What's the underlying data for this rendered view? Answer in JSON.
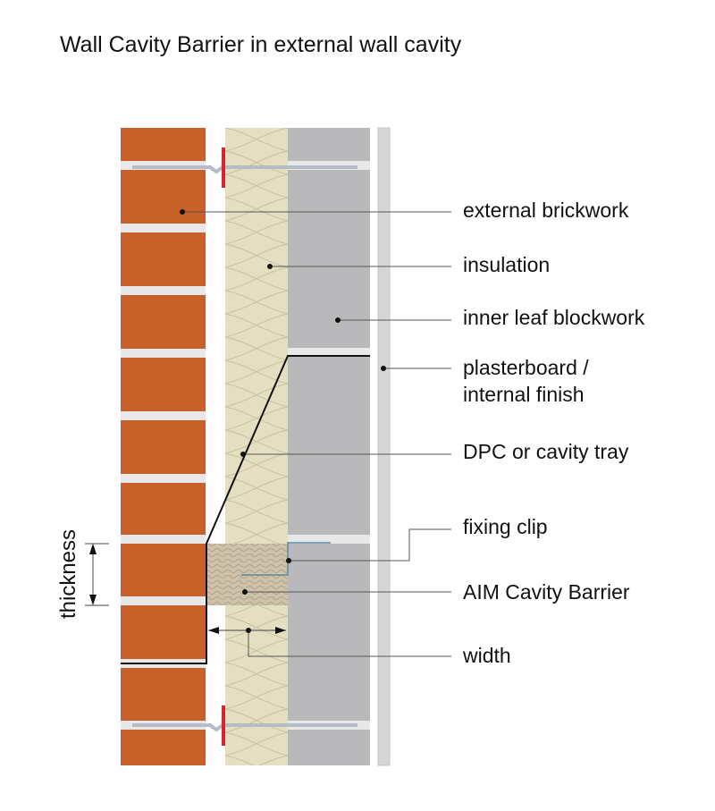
{
  "title": "Wall Cavity Barrier in external wall cavity",
  "labels": {
    "external_brickwork": "external brickwork",
    "insulation": "insulation",
    "inner_leaf": "inner leaf  blockwork",
    "plasterboard_1": "plasterboard /",
    "plasterboard_2": "internal finish",
    "dpc": "DPC or cavity tray",
    "fixing_clip": "fixing clip",
    "cavity_barrier": "AIM Cavity Barrier",
    "width": "width",
    "thickness": "thickness"
  },
  "colors": {
    "brick": "#c8602a",
    "insulation": "#e3dfc0",
    "block": "#b9b9bb",
    "plaster": "#d6d6d6",
    "wall_tie_clip": "#d9232e",
    "fixing_clip": "#5a8aa8",
    "barrier": "#cbbfa6"
  }
}
